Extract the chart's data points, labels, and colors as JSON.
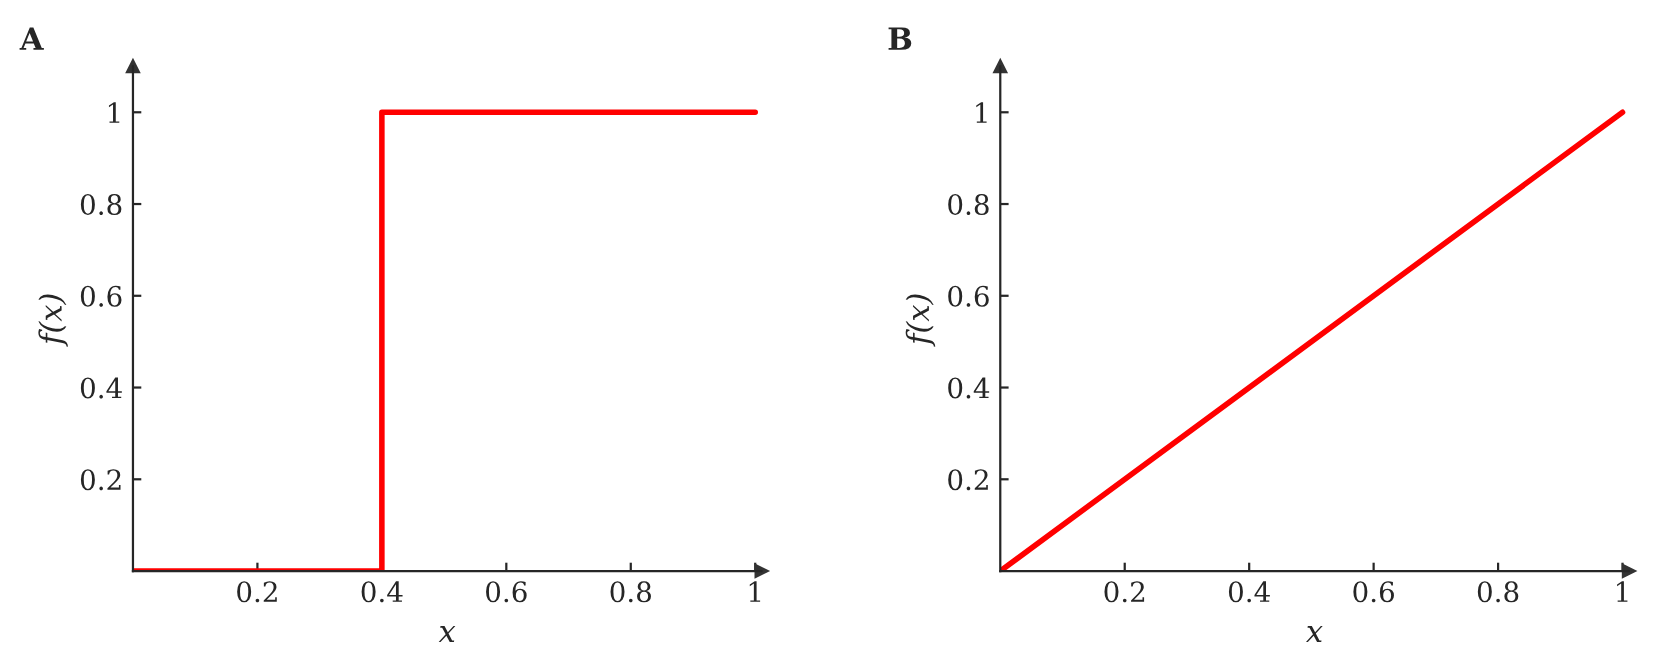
{
  "chart_data": [
    {
      "type": "step",
      "title": "A",
      "xlabel": "x",
      "ylabel": "f(x)",
      "x": [
        0,
        0.4,
        1
      ],
      "series": [
        {
          "color": "#ff0000",
          "values": [
            0,
            1,
            1
          ]
        }
      ],
      "xlim": [
        0,
        1.01
      ],
      "ylim": [
        0,
        1.1
      ],
      "xticks": [
        0.2,
        0.4,
        0.6,
        0.8,
        1
      ],
      "yticks": [
        0.2,
        0.4,
        0.6,
        0.8,
        1
      ],
      "grid": false,
      "marker": "none",
      "line_style": "solid"
    },
    {
      "type": "line",
      "title": "B",
      "xlabel": "x",
      "ylabel": "f(x)",
      "x": [
        0,
        1
      ],
      "series": [
        {
          "color": "#ff0000",
          "values": [
            0,
            1
          ]
        }
      ],
      "xlim": [
        0,
        1.01
      ],
      "ylim": [
        0,
        1.1
      ],
      "xticks": [
        0.2,
        0.4,
        0.6,
        0.8,
        1
      ],
      "yticks": [
        0.2,
        0.4,
        0.6,
        0.8,
        1
      ],
      "grid": false,
      "marker": "none",
      "line_style": "solid"
    }
  ]
}
